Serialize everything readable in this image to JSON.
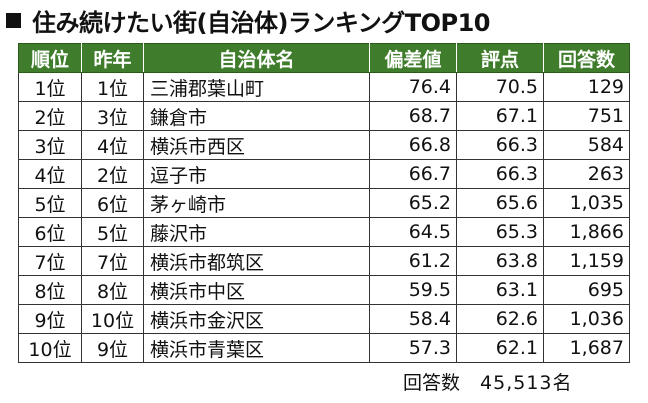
{
  "title": "住み続けたい街(自治体)ランキングTOP10",
  "chart_data": {
    "type": "table",
    "columns": [
      "順位",
      "昨年",
      "自治体名",
      "偏差値",
      "評点",
      "回答数"
    ],
    "rows": [
      [
        "1位",
        "1位",
        "三浦郡葉山町",
        "76.4",
        "70.5",
        "129"
      ],
      [
        "2位",
        "3位",
        "鎌倉市",
        "68.7",
        "67.1",
        "751"
      ],
      [
        "3位",
        "4位",
        "横浜市西区",
        "66.8",
        "66.3",
        "584"
      ],
      [
        "4位",
        "2位",
        "逗子市",
        "66.7",
        "66.3",
        "263"
      ],
      [
        "5位",
        "6位",
        "茅ヶ崎市",
        "65.2",
        "65.6",
        "1,035"
      ],
      [
        "6位",
        "5位",
        "藤沢市",
        "64.5",
        "65.3",
        "1,866"
      ],
      [
        "7位",
        "7位",
        "横浜市都筑区",
        "61.2",
        "63.8",
        "1,159"
      ],
      [
        "8位",
        "8位",
        "横浜市中区",
        "59.5",
        "63.1",
        "695"
      ],
      [
        "9位",
        "10位",
        "横浜市金沢区",
        "58.4",
        "62.6",
        "1,036"
      ],
      [
        "10位",
        "9位",
        "横浜市青葉区",
        "57.3",
        "62.1",
        "1,687"
      ]
    ]
  },
  "footer": {
    "label": "回答数",
    "value": "45,513名"
  },
  "colors": {
    "header_bg": "#3f7d2c",
    "header_text": "#ffffff"
  }
}
